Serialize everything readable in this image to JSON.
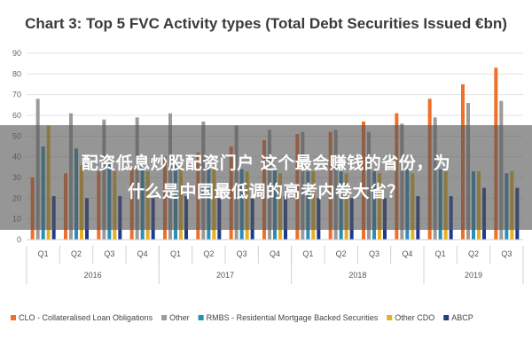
{
  "chart_data": {
    "type": "bar",
    "title": "Chart 3: Top 5 FVC Activity types (Total Debt Securities Issued €bn)",
    "ylim": [
      0,
      90
    ],
    "yticks": [
      "0",
      "10",
      "20",
      "30",
      "40",
      "50",
      "60",
      "70",
      "80",
      "90"
    ],
    "grid": true,
    "legend_position": "bottom",
    "categories": [
      "Q1",
      "Q2",
      "Q3",
      "Q4",
      "Q1",
      "Q2",
      "Q3",
      "Q4",
      "Q1",
      "Q2",
      "Q3",
      "Q4",
      "Q1",
      "Q2",
      "Q3"
    ],
    "years": [
      {
        "label": "2016",
        "count": 4
      },
      {
        "label": "2017",
        "count": 4
      },
      {
        "label": "2018",
        "count": 4
      },
      {
        "label": "2019",
        "count": 3
      }
    ],
    "series": [
      {
        "name": "CLO - Collateralised Loan Obligations",
        "color": "#f0702a",
        "values": [
          30,
          32,
          33,
          35,
          40,
          42,
          45,
          48,
          51,
          52,
          57,
          61,
          68,
          75,
          83
        ]
      },
      {
        "name": "Other",
        "color": "#9b9b9b",
        "values": [
          68,
          61,
          58,
          59,
          61,
          57,
          55,
          53,
          52,
          53,
          52,
          56,
          59,
          66,
          67
        ]
      },
      {
        "name": "RMBS - Residential Mortgage Backed Securities",
        "color": "#2a8fb8",
        "values": [
          45,
          44,
          37,
          36,
          36,
          35,
          34,
          34,
          33,
          33,
          33,
          34,
          34,
          33,
          32
        ]
      },
      {
        "name": "Other CDO",
        "color": "#e8b020",
        "values": [
          55,
          36,
          33,
          33,
          35,
          34,
          33,
          32,
          33,
          32,
          32,
          32,
          33,
          33,
          33
        ]
      },
      {
        "name": "ABCP",
        "color": "#1e3c8c",
        "values": [
          21,
          20,
          21,
          20,
          21,
          20,
          20,
          21,
          20,
          20,
          20,
          21,
          21,
          25,
          25
        ]
      }
    ]
  },
  "overlay": {
    "line1": "配资低息炒股配资门户 这个最会赚钱的省份，为",
    "line2": "什么是中国最低调的高考内卷大省？"
  }
}
